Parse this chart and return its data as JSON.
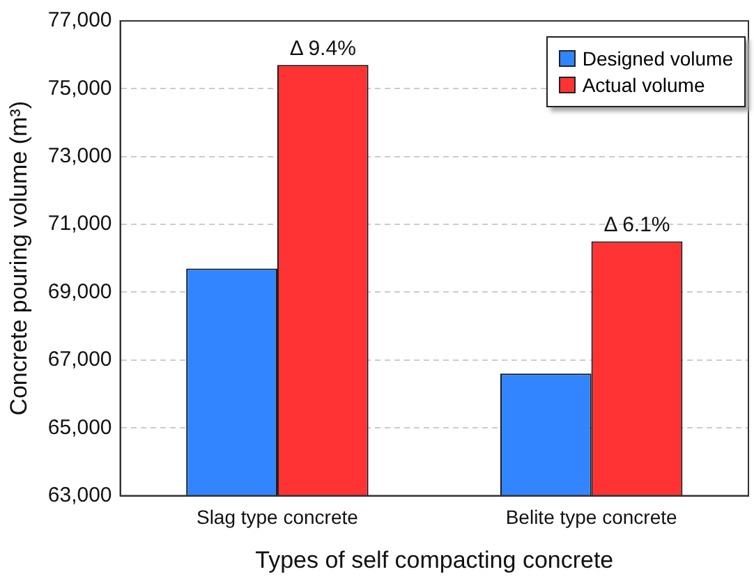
{
  "chart_data": {
    "type": "bar",
    "xlabel": "Types of self compacting concrete",
    "ylabel": "Concrete pouring volume (m³)",
    "categories": [
      "Slag type concrete",
      "Belite type concrete"
    ],
    "series": [
      {
        "name": "Designed volume",
        "color": "#3385ff",
        "values": [
          69700,
          66600
        ]
      },
      {
        "name": "Actual volume",
        "color": "#ff3333",
        "values": [
          75700,
          70500
        ]
      }
    ],
    "ylim": [
      63000,
      77000
    ],
    "yticks": [
      {
        "value": 63000,
        "label": "63,000"
      },
      {
        "value": 65000,
        "label": "65,000"
      },
      {
        "value": 67000,
        "label": "67,000"
      },
      {
        "value": 69000,
        "label": "69,000"
      },
      {
        "value": 71000,
        "label": "71,000"
      },
      {
        "value": 73000,
        "label": "73,000"
      },
      {
        "value": 75000,
        "label": "75,000"
      },
      {
        "value": 77000,
        "label": "77,000"
      }
    ],
    "grid": "y",
    "legend": "top right",
    "annotations": [
      {
        "text": "Δ 9.4%",
        "x": "Slag type concrete",
        "y": 75700
      },
      {
        "text": "Δ 6.1%",
        "x": "Belite type concrete",
        "y": 70500
      }
    ]
  }
}
